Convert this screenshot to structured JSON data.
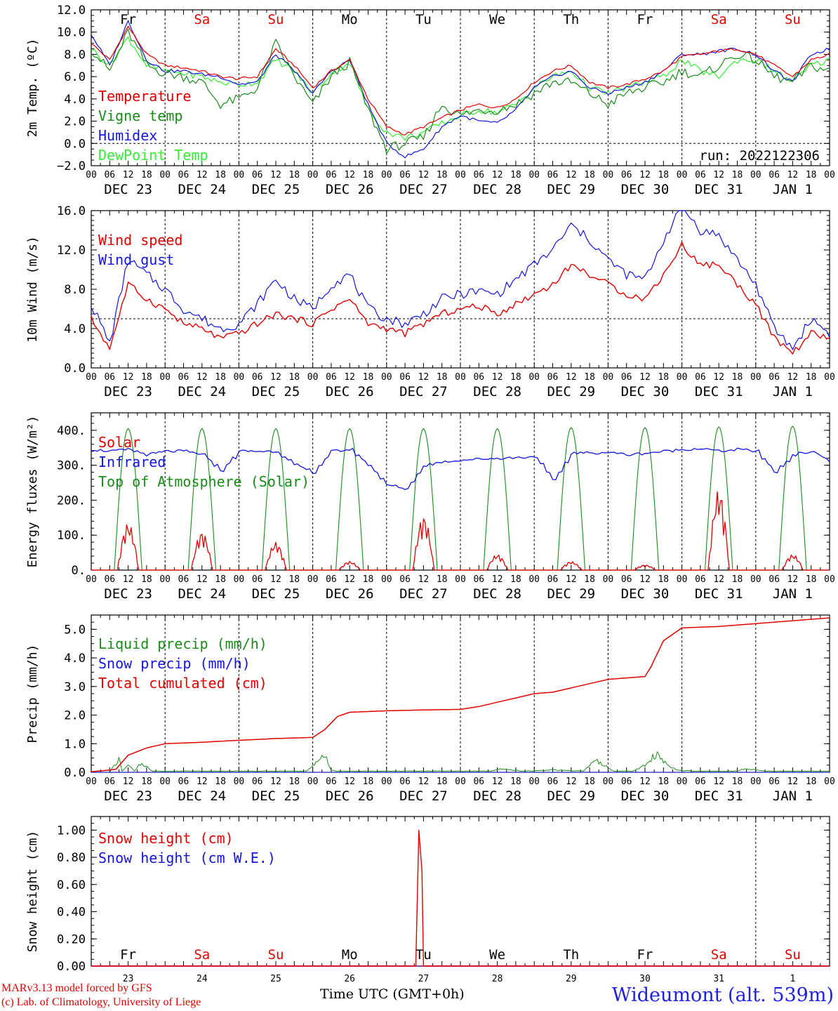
{
  "axis": {
    "day_headers": [
      "Fr",
      "Sa",
      "Su",
      "Mo",
      "Tu",
      "We",
      "Th",
      "Fr",
      "Sa",
      "Su"
    ],
    "weekend_flags": [
      false,
      true,
      true,
      false,
      false,
      false,
      false,
      false,
      true,
      true
    ],
    "hour_ticks": [
      "00",
      "06",
      "12",
      "18"
    ],
    "date_labels": [
      "DEC 23",
      "DEC 24",
      "DEC 25",
      "DEC 26",
      "DEC 27",
      "DEC 28",
      "DEC 29",
      "DEC 30",
      "DEC 31",
      "JAN  1"
    ],
    "day_numbers": [
      "23",
      "24",
      "25",
      "26",
      "27",
      "28",
      "29",
      "30",
      "31",
      "1"
    ]
  },
  "colors": {
    "red": "#e00000",
    "green": "#1a8c1a",
    "blue": "#1515e0",
    "lightgreen": "#33ee33",
    "purple": "#7a1a9a"
  },
  "footer": {
    "credit_line1": "MARv3.13 model forced by GFS",
    "credit_line2": "(c) Lab. of Climatology, University of Liege",
    "time_axis": "Time UTC (GMT+0h)",
    "station": "Wideumont (alt. 539m)"
  },
  "chart_data": [
    {
      "type": "line",
      "ylabel": "2m Temp. (ºC)",
      "ylim": [
        -2,
        12
      ],
      "yticks": [
        "12.0",
        "10.0",
        "8.0",
        "6.0",
        "4.0",
        "2.0",
        "0.0",
        "−2.0"
      ],
      "reference_line": 0,
      "annotation": "run: 2022122306",
      "x_hours": [
        0,
        6,
        12,
        18,
        24,
        30,
        36,
        42,
        48,
        54,
        60,
        66,
        72,
        78,
        84,
        90,
        96,
        102,
        108,
        114,
        120,
        126,
        132,
        138,
        144,
        150,
        156,
        162,
        168,
        174,
        180,
        186,
        192,
        198,
        204,
        210,
        216,
        222,
        228,
        234,
        240
      ],
      "series": [
        {
          "name": "Temperature",
          "color": "red",
          "values": [
            9.0,
            7.5,
            10.5,
            8.0,
            7.0,
            6.8,
            6.5,
            6.0,
            5.8,
            6.0,
            8.5,
            7.0,
            5.0,
            6.5,
            7.5,
            4.0,
            1.5,
            0.8,
            1.5,
            2.3,
            3.0,
            3.5,
            3.2,
            4.0,
            5.5,
            6.5,
            7.0,
            5.5,
            5.0,
            5.3,
            5.8,
            6.5,
            7.8,
            8.0,
            8.3,
            8.5,
            8.0,
            7.0,
            6.0,
            7.5,
            8.0
          ]
        },
        {
          "name": "Vigne temp",
          "color": "green",
          "values": [
            8.5,
            6.5,
            10.0,
            7.0,
            6.3,
            6.0,
            5.5,
            3.5,
            4.0,
            5.0,
            9.0,
            6.0,
            3.5,
            6.0,
            7.3,
            3.0,
            -0.5,
            0.0,
            0.5,
            3.5,
            2.5,
            3.0,
            3.0,
            3.5,
            4.5,
            5.5,
            5.5,
            4.5,
            3.5,
            4.5,
            5.0,
            5.5,
            6.5,
            6.0,
            7.0,
            8.0,
            7.5,
            6.0,
            5.5,
            7.0,
            6.5
          ]
        },
        {
          "name": "Humidex",
          "color": "blue",
          "values": [
            9.8,
            7.0,
            11.0,
            7.5,
            6.5,
            6.5,
            6.2,
            6.0,
            5.3,
            5.5,
            8.0,
            6.5,
            4.5,
            6.5,
            7.5,
            3.5,
            0.0,
            -1.2,
            -0.5,
            1.5,
            2.5,
            2.0,
            1.8,
            3.0,
            5.0,
            6.0,
            6.5,
            5.0,
            4.5,
            5.0,
            5.5,
            6.5,
            8.0,
            8.0,
            8.3,
            8.5,
            8.0,
            6.5,
            5.5,
            8.0,
            8.5
          ]
        },
        {
          "name": "DewPoint Temp",
          "color": "lightgreen",
          "values": [
            8.5,
            7.0,
            9.5,
            7.0,
            6.5,
            6.3,
            6.0,
            5.5,
            5.3,
            5.5,
            7.5,
            6.5,
            4.5,
            6.3,
            7.3,
            3.0,
            1.0,
            0.5,
            1.0,
            1.8,
            2.5,
            3.0,
            2.8,
            3.5,
            5.0,
            6.0,
            6.5,
            5.0,
            4.5,
            5.0,
            5.5,
            6.0,
            7.5,
            6.5,
            6.0,
            7.5,
            7.5,
            6.5,
            5.5,
            7.0,
            7.5
          ]
        }
      ]
    },
    {
      "type": "line",
      "ylabel": "10m Wind (m/s)",
      "ylim": [
        0,
        16
      ],
      "yticks": [
        "16.0",
        "12.0",
        "8.0",
        "4.0",
        "0.0"
      ],
      "reference_line": 5,
      "x_hours": [
        0,
        6,
        12,
        18,
        24,
        30,
        36,
        42,
        48,
        54,
        60,
        66,
        72,
        78,
        84,
        90,
        96,
        102,
        108,
        114,
        120,
        126,
        132,
        138,
        144,
        150,
        156,
        162,
        168,
        174,
        180,
        186,
        192,
        198,
        204,
        210,
        216,
        222,
        228,
        234,
        240
      ],
      "series": [
        {
          "name": "Wind speed",
          "color": "red",
          "values": [
            5.0,
            2.0,
            8.5,
            7.0,
            6.0,
            4.5,
            4.0,
            3.0,
            3.5,
            4.5,
            5.5,
            5.0,
            4.5,
            6.0,
            7.0,
            4.5,
            4.0,
            3.5,
            4.5,
            5.5,
            6.0,
            6.3,
            5.5,
            6.5,
            7.5,
            8.5,
            10.5,
            9.5,
            8.5,
            7.5,
            7.0,
            9.5,
            12.5,
            10.5,
            10.5,
            8.5,
            6.5,
            3.0,
            1.5,
            3.5,
            3.0
          ]
        },
        {
          "name": "Wind gust",
          "color": "blue",
          "values": [
            6.5,
            2.5,
            11.0,
            9.5,
            8.0,
            6.0,
            5.0,
            4.0,
            4.5,
            6.5,
            9.0,
            7.0,
            6.0,
            8.5,
            9.5,
            6.0,
            5.0,
            4.5,
            5.5,
            7.0,
            7.5,
            7.8,
            7.5,
            9.0,
            10.5,
            12.0,
            14.5,
            13.0,
            11.0,
            9.5,
            9.0,
            13.0,
            16.5,
            14.0,
            13.5,
            11.0,
            8.5,
            4.0,
            2.0,
            5.0,
            3.5
          ]
        }
      ]
    },
    {
      "type": "line",
      "ylabel": "Energy fluxes (W/m²)",
      "ylim": [
        0,
        450
      ],
      "yticks": [
        "400.",
        "300.",
        "200.",
        "100.",
        "0."
      ],
      "series": [
        {
          "name": "Solar",
          "color": "red",
          "daily_peak": [
            135,
            110,
            80,
            25,
            155,
            45,
            25,
            15,
            230,
            45
          ]
        },
        {
          "name": "Infrared",
          "color": "blue",
          "x_hours": [
            0,
            6,
            12,
            18,
            24,
            30,
            36,
            42,
            48,
            54,
            60,
            66,
            72,
            78,
            84,
            90,
            96,
            102,
            108,
            114,
            120,
            126,
            132,
            138,
            144,
            150,
            156,
            162,
            168,
            174,
            180,
            186,
            192,
            198,
            204,
            210,
            216,
            222,
            228,
            234,
            240
          ],
          "values": [
            345,
            340,
            345,
            330,
            340,
            340,
            330,
            285,
            340,
            340,
            340,
            300,
            280,
            340,
            345,
            300,
            245,
            230,
            300,
            310,
            315,
            318,
            320,
            322,
            325,
            255,
            335,
            335,
            337,
            330,
            335,
            340,
            345,
            348,
            340,
            345,
            340,
            280,
            330,
            340,
            310
          ]
        },
        {
          "name": "Top of Atmosphere (Solar)",
          "color": "green",
          "daily_peak": [
            405,
            405,
            405,
            405,
            405,
            405,
            408,
            408,
            410,
            412
          ]
        }
      ]
    },
    {
      "type": "area",
      "ylabel": "Precip (mm/h)",
      "ylim": [
        0,
        5.5
      ],
      "yticks": [
        "5.0",
        "4.0",
        "3.0",
        "2.0",
        "1.0",
        "0.0"
      ],
      "series": [
        {
          "name": "Liquid precip (mm/h)",
          "color": "green",
          "x_hours": [
            0,
            6,
            9,
            10,
            12,
            14,
            16,
            20,
            24,
            40,
            70,
            72,
            76,
            78,
            80,
            84,
            100,
            130,
            134,
            140,
            150,
            160,
            164,
            170,
            176,
            180,
            182,
            184,
            186,
            190,
            196,
            210,
            212,
            220,
            240
          ],
          "values": [
            0,
            0,
            0.6,
            0.05,
            0.3,
            0.05,
            0.4,
            0.05,
            0.05,
            0.05,
            0.05,
            0.3,
            0.7,
            0.1,
            0.05,
            0.05,
            0.05,
            0.05,
            0.15,
            0.05,
            0.1,
            0.05,
            0.5,
            0.05,
            0.05,
            0.3,
            0.6,
            0.8,
            0.5,
            0.1,
            0.05,
            0.05,
            0.15,
            0.05,
            0.05
          ]
        },
        {
          "name": "Snow precip (mm/h)",
          "color": "blue",
          "x_hours": [
            0,
            240
          ],
          "values": [
            0,
            0
          ]
        },
        {
          "name": "Total cumulated (cm)",
          "color": "red",
          "x_hours": [
            0,
            8,
            12,
            18,
            24,
            36,
            48,
            60,
            72,
            76,
            80,
            84,
            96,
            108,
            120,
            126,
            132,
            138,
            144,
            150,
            156,
            162,
            168,
            180,
            182,
            186,
            192,
            204,
            216,
            228,
            240
          ],
          "values": [
            0.02,
            0.1,
            0.6,
            0.85,
            1.0,
            1.05,
            1.12,
            1.18,
            1.22,
            1.5,
            1.95,
            2.1,
            2.15,
            2.18,
            2.2,
            2.3,
            2.45,
            2.6,
            2.75,
            2.8,
            2.95,
            3.1,
            3.25,
            3.35,
            3.7,
            4.6,
            5.05,
            5.1,
            5.2,
            5.3,
            5.4
          ]
        }
      ]
    },
    {
      "type": "line",
      "ylabel": "Snow height (cm)",
      "ylim": [
        0,
        1.1
      ],
      "yticks": [
        "1.00",
        "0.80",
        "0.60",
        "0.40",
        "0.20",
        "0.00"
      ],
      "series": [
        {
          "name": "Snow height (cm)",
          "color": "red",
          "x_hours": [
            0,
            105.5,
            106.5,
            107.5,
            108,
            240
          ],
          "values": [
            0,
            0,
            1.0,
            0.7,
            0,
            0
          ]
        },
        {
          "name": "Snow height (cm W.E.)",
          "color": "blue",
          "x_hours": [
            0,
            240
          ],
          "values": [
            0,
            0
          ]
        }
      ]
    }
  ]
}
